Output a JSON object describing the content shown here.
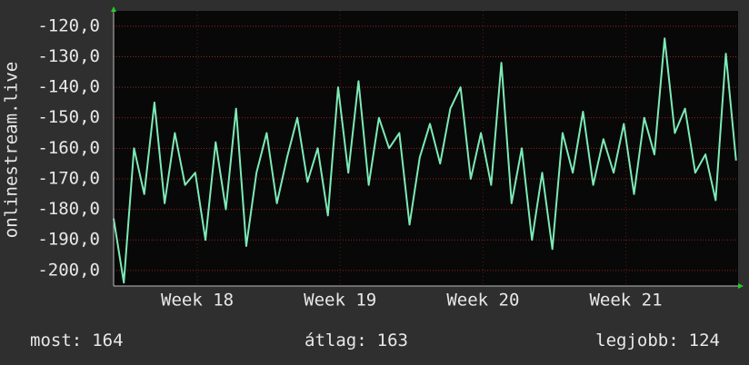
{
  "chart_data": {
    "type": "line",
    "y_label": "onlinestream.live",
    "x": [
      0,
      0.5,
      1,
      1.5,
      2,
      2.5,
      3,
      3.5,
      4,
      4.5,
      5,
      5.5,
      6,
      6.5,
      7,
      7.5,
      8,
      8.5,
      9,
      9.5,
      10,
      10.5,
      11,
      11.5,
      12,
      12.5,
      13,
      13.5,
      14,
      14.5,
      15,
      15.5,
      16,
      16.5,
      17,
      17.5,
      18,
      18.5,
      19,
      19.5,
      20,
      20.5,
      21,
      21.5,
      22,
      22.5,
      23,
      23.5,
      24,
      24.5,
      25,
      25.5,
      26,
      26.5,
      27,
      27.5,
      28,
      28.5,
      29,
      29.5,
      30,
      30.5
    ],
    "series": [
      {
        "name": "onlinestream.live",
        "color": "#7deab6",
        "values": [
          -183,
          -204,
          -160,
          -175,
          -145,
          -178,
          -155,
          -172,
          -168,
          -190,
          -158,
          -180,
          -147,
          -192,
          -168,
          -155,
          -178,
          -163,
          -150,
          -171,
          -160,
          -182,
          -140,
          -168,
          -138,
          -172,
          -150,
          -160,
          -155,
          -185,
          -163,
          -152,
          -165,
          -147,
          -140,
          -170,
          -155,
          -172,
          -132,
          -178,
          -160,
          -190,
          -168,
          -193,
          -155,
          -168,
          -148,
          -172,
          -157,
          -168,
          -152,
          -175,
          -150,
          -162,
          -124,
          -155,
          -147,
          -168,
          -162,
          -177,
          -129,
          -164
        ]
      }
    ],
    "xlim": [
      0,
      30.6
    ],
    "xticks": [
      {
        "value": 4.1,
        "label": "Week 18"
      },
      {
        "value": 11.1,
        "label": "Week 19"
      },
      {
        "value": 18.1,
        "label": "Week 20"
      },
      {
        "value": 25.1,
        "label": "Week 21"
      }
    ],
    "ylim": [
      -205.1,
      -115
    ],
    "yticks": [
      {
        "value": -120,
        "label": "-120,0"
      },
      {
        "value": -130,
        "label": "-130,0"
      },
      {
        "value": -140,
        "label": "-140,0"
      },
      {
        "value": -150,
        "label": "-150,0"
      },
      {
        "value": -160,
        "label": "-160,0"
      },
      {
        "value": -170,
        "label": "-170,0"
      },
      {
        "value": -180,
        "label": "-180,0"
      },
      {
        "value": -190,
        "label": "-190,0"
      },
      {
        "value": -200,
        "label": "-200,0"
      }
    ],
    "grid": true,
    "stats": [
      {
        "label": "most:",
        "value": 164
      },
      {
        "label": "átlag:",
        "value": 163
      },
      {
        "label": "legjobb:",
        "value": 124
      }
    ]
  }
}
